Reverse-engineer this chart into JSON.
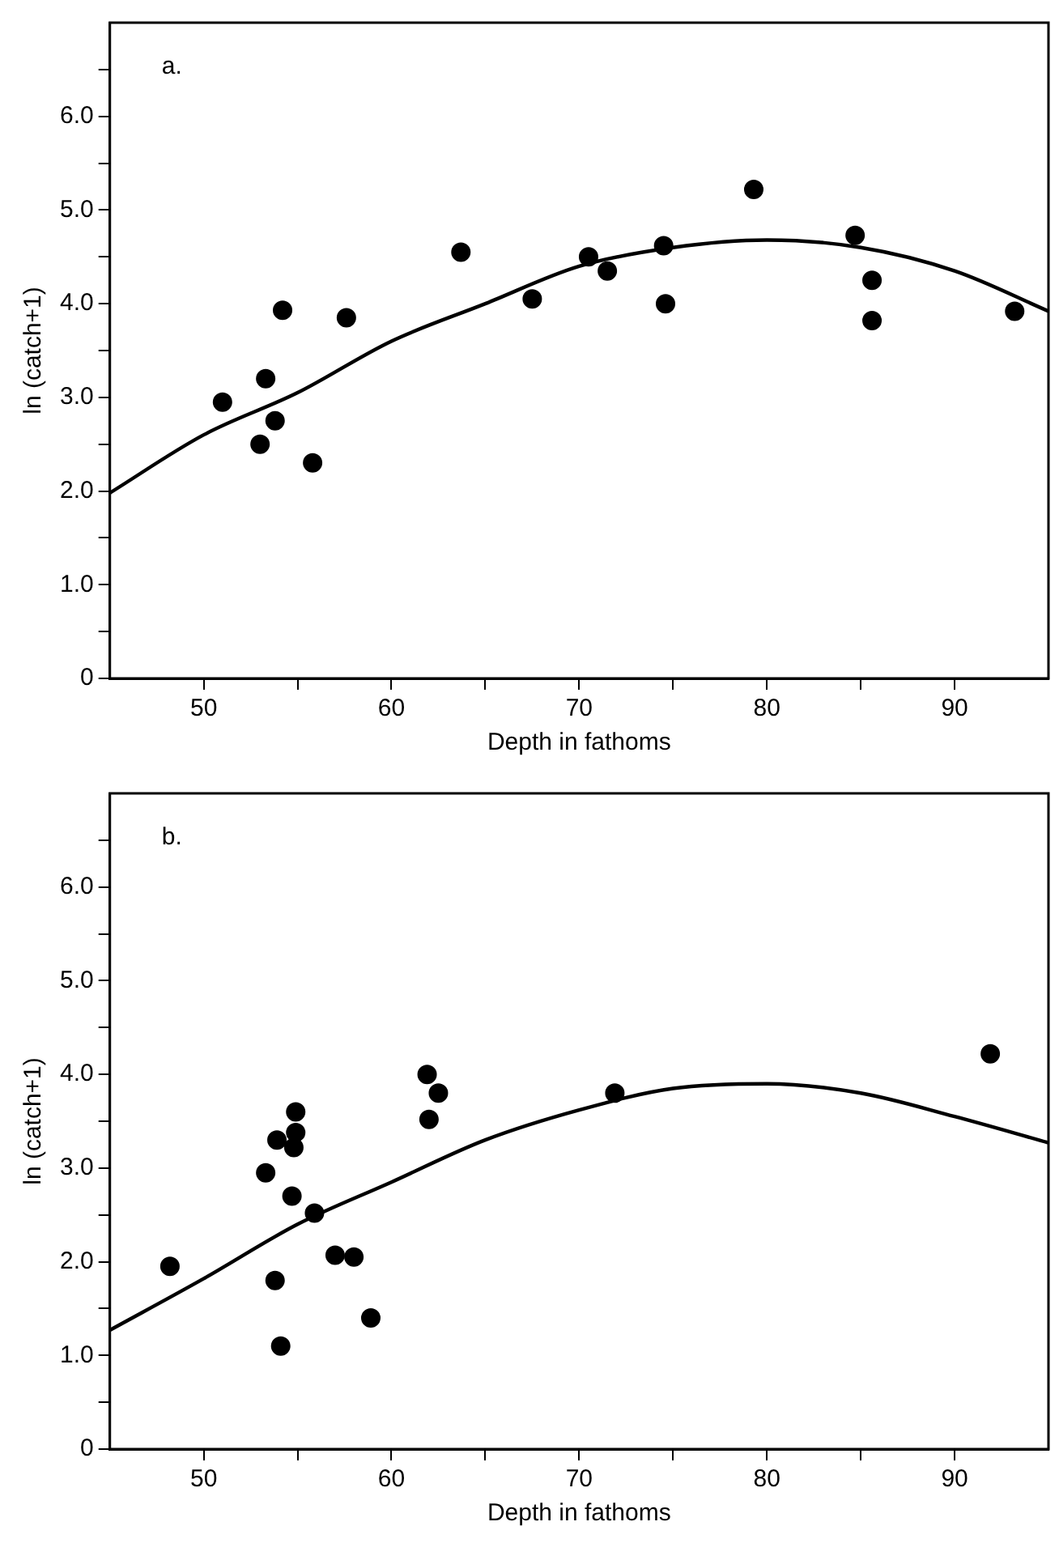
{
  "chart_data": [
    {
      "type": "scatter",
      "annotations": [
        "a."
      ],
      "xlabel": "Depth in fathoms",
      "ylabel": "ln (catch+1)",
      "xlim": [
        45,
        95
      ],
      "ylim": [
        0,
        7
      ],
      "xticks": [
        50,
        {
          "value": 55,
          "label": null
        },
        60,
        {
          "value": 65,
          "label": null
        },
        70,
        {
          "value": 75,
          "label": null
        },
        80,
        {
          "value": 85,
          "label": null
        },
        90
      ],
      "yticks": [
        0,
        {
          "value": 0.5,
          "label": null
        },
        {
          "value": 1,
          "label": "1.0"
        },
        {
          "value": 1.5,
          "label": null
        },
        {
          "value": 2,
          "label": "2.0"
        },
        {
          "value": 2.5,
          "label": null
        },
        {
          "value": 3,
          "label": "3.0"
        },
        {
          "value": 3.5,
          "label": null
        },
        {
          "value": 4,
          "label": "4.0"
        },
        {
          "value": 4.5,
          "label": null
        },
        {
          "value": 5,
          "label": "5.0"
        },
        {
          "value": 5.5,
          "label": null
        },
        {
          "value": 6,
          "label": "6.0"
        },
        {
          "value": 6.5,
          "label": null
        }
      ],
      "grid": false,
      "legend": false,
      "marker": "circle",
      "series": [
        {
          "color": "#000000",
          "x": [
            51,
            53,
            53.3,
            53.8,
            54.2,
            55.8,
            57.6,
            63.7,
            67.5,
            70.5,
            71.5,
            74.5,
            74.6,
            79.3,
            84.7,
            85.6,
            85.6,
            93.2
          ],
          "values": [
            2.95,
            2.5,
            3.2,
            2.75,
            3.93,
            2.3,
            3.85,
            4.55,
            4.05,
            4.5,
            4.35,
            4.62,
            4.0,
            5.22,
            4.73,
            4.25,
            3.82,
            3.92
          ]
        },
        {
          "type": "line",
          "color": "#000000",
          "marker": "none",
          "line_style": "solid",
          "x": [
            45,
            50,
            55,
            60,
            65,
            70,
            75,
            80,
            85,
            90,
            95
          ],
          "values": [
            1.98,
            2.6,
            3.05,
            3.6,
            4.0,
            4.4,
            4.6,
            4.68,
            4.6,
            4.35,
            3.92
          ]
        }
      ]
    },
    {
      "type": "scatter",
      "annotations": [
        "b."
      ],
      "xlabel": "Depth in fathoms",
      "ylabel": "ln (catch+1)",
      "xlim": [
        45,
        95
      ],
      "ylim": [
        0,
        7
      ],
      "xticks": [
        50,
        {
          "value": 55,
          "label": null
        },
        60,
        {
          "value": 65,
          "label": null
        },
        70,
        {
          "value": 75,
          "label": null
        },
        80,
        {
          "value": 85,
          "label": null
        },
        90
      ],
      "yticks": [
        0,
        {
          "value": 0.5,
          "label": null
        },
        {
          "value": 1,
          "label": "1.0"
        },
        {
          "value": 1.5,
          "label": null
        },
        {
          "value": 2,
          "label": "2.0"
        },
        {
          "value": 2.5,
          "label": null
        },
        {
          "value": 3,
          "label": "3.0"
        },
        {
          "value": 3.5,
          "label": null
        },
        {
          "value": 4,
          "label": "4.0"
        },
        {
          "value": 4.5,
          "label": null
        },
        {
          "value": 5,
          "label": "5.0"
        },
        {
          "value": 5.5,
          "label": null
        },
        {
          "value": 6,
          "label": "6.0"
        },
        {
          "value": 6.5,
          "label": null
        }
      ],
      "grid": false,
      "legend": false,
      "marker": "circle",
      "series": [
        {
          "color": "#000000",
          "x": [
            48.2,
            53.3,
            53.9,
            53.8,
            54.1,
            54.7,
            54.8,
            54.9,
            54.9,
            55.9,
            57,
            58,
            58.9,
            61.9,
            62,
            62.5,
            71.9,
            91.9
          ],
          "values": [
            1.95,
            2.95,
            3.3,
            1.8,
            1.1,
            2.7,
            3.22,
            3.38,
            3.6,
            2.52,
            2.07,
            2.05,
            1.4,
            4.0,
            3.52,
            3.8,
            3.8,
            4.22
          ]
        },
        {
          "type": "line",
          "color": "#000000",
          "marker": "none",
          "line_style": "solid",
          "x": [
            45,
            50,
            55,
            60,
            65,
            70,
            75,
            80,
            85,
            90,
            95
          ],
          "values": [
            1.27,
            1.82,
            2.4,
            2.85,
            3.3,
            3.62,
            3.85,
            3.9,
            3.8,
            3.55,
            3.27
          ]
        }
      ]
    }
  ]
}
